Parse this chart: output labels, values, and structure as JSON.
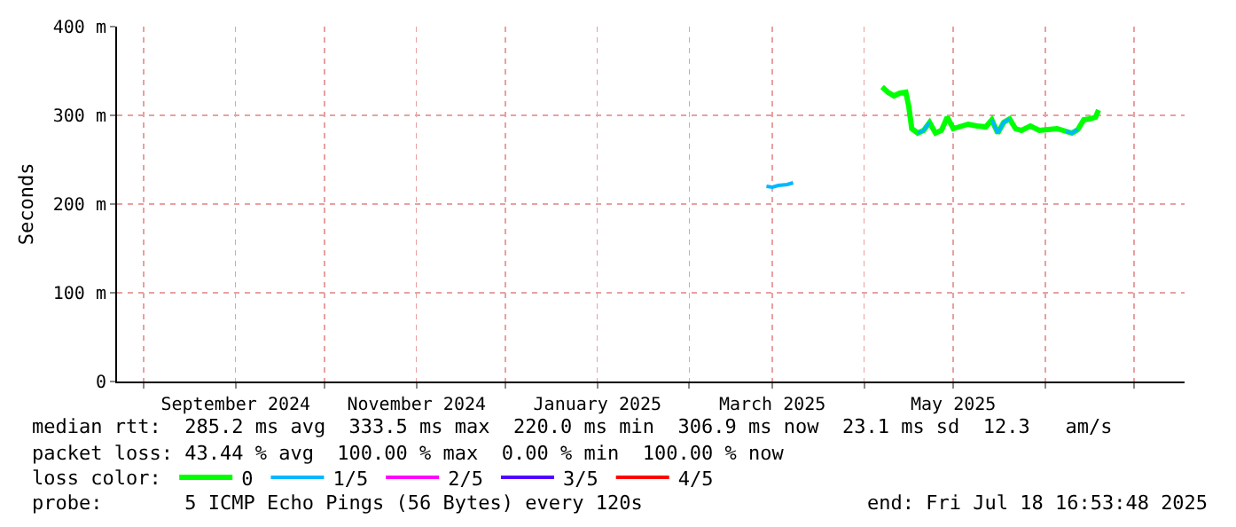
{
  "chart_data": {
    "type": "line",
    "ylabel": "Seconds",
    "legend_title": "loss color:",
    "x": [
      "2025-02-27",
      "2025-03-01",
      "2025-03-03",
      "2025-03-06",
      "2025-03-08",
      "2025-03-20",
      "2025-04-07",
      "2025-04-09",
      "2025-04-11",
      "2025-04-13",
      "2025-04-15",
      "2025-04-16",
      "2025-04-17",
      "2025-04-19",
      "2025-04-21",
      "2025-04-23",
      "2025-04-25",
      "2025-04-27",
      "2025-04-29",
      "2025-05-01",
      "2025-05-03",
      "2025-05-06",
      "2025-05-09",
      "2025-05-12",
      "2025-05-14",
      "2025-05-16",
      "2025-05-18",
      "2025-05-20",
      "2025-05-22",
      "2025-05-24",
      "2025-05-27",
      "2025-05-30",
      "2025-06-02",
      "2025-06-05",
      "2025-06-08",
      "2025-06-10",
      "2025-06-12",
      "2025-06-14",
      "2025-06-16",
      "2025-06-18",
      "2025-06-19"
    ],
    "series": [
      {
        "name": "0",
        "color": "#00ff00",
        "values": [
          null,
          null,
          null,
          null,
          null,
          null,
          332,
          326,
          322,
          325,
          326,
          310,
          285,
          280,
          283,
          292,
          280,
          283,
          298,
          285,
          287,
          290,
          288,
          287,
          295,
          280,
          292,
          296,
          285,
          283,
          288,
          283,
          284,
          285,
          282,
          280,
          284,
          295,
          296,
          298,
          306
        ]
      },
      {
        "name": "1/5",
        "color": "#00b8ff",
        "values": [
          220,
          219,
          221,
          222,
          224,
          null,
          null,
          null,
          null,
          null,
          null,
          null,
          null,
          280,
          283,
          292,
          null,
          null,
          null,
          null,
          null,
          null,
          null,
          null,
          295,
          280,
          292,
          296,
          null,
          null,
          null,
          null,
          null,
          null,
          282,
          280,
          284,
          null,
          null,
          null,
          null
        ]
      },
      {
        "name": "2/5",
        "color": "#ff00ff",
        "values": [
          null,
          null,
          null,
          null,
          null,
          null,
          null,
          null,
          null,
          null,
          null,
          null,
          null,
          null,
          null,
          null,
          null,
          null,
          null,
          null,
          null,
          null,
          null,
          null,
          null,
          null,
          null,
          null,
          null,
          null,
          null,
          null,
          null,
          null,
          null,
          null,
          null,
          null,
          null,
          null,
          null
        ]
      },
      {
        "name": "3/5",
        "color": "#5500ff",
        "values": [
          null,
          null,
          null,
          null,
          null,
          null,
          null,
          null,
          null,
          null,
          null,
          null,
          null,
          null,
          null,
          null,
          null,
          null,
          null,
          null,
          null,
          null,
          null,
          null,
          null,
          null,
          null,
          null,
          null,
          null,
          null,
          null,
          null,
          null,
          null,
          null,
          null,
          null,
          null,
          null,
          null
        ]
      },
      {
        "name": "4/5",
        "color": "#ff0000",
        "values": [
          null,
          null,
          null,
          null,
          null,
          null,
          null,
          null,
          null,
          null,
          null,
          null,
          null,
          null,
          null,
          null,
          null,
          null,
          null,
          null,
          null,
          null,
          null,
          null,
          null,
          null,
          null,
          null,
          null,
          null,
          null,
          null,
          null,
          null,
          null,
          null,
          null,
          null,
          null,
          null,
          null
        ]
      }
    ],
    "xlim": [
      "2024-07-23",
      "2025-07-18"
    ],
    "xticks": [
      {
        "value": "2024-08-01",
        "label": null
      },
      {
        "value": "2024-09-01",
        "label": "September 2024"
      },
      {
        "value": "2024-10-01",
        "label": null
      },
      {
        "value": "2024-11-01",
        "label": "November 2024"
      },
      {
        "value": "2024-12-01",
        "label": null
      },
      {
        "value": "2025-01-01",
        "label": "January 2025"
      },
      {
        "value": "2025-02-01",
        "label": null
      },
      {
        "value": "2025-03-01",
        "label": "March 2025"
      },
      {
        "value": "2025-04-01",
        "label": null
      },
      {
        "value": "2025-05-01",
        "label": "May 2025"
      },
      {
        "value": "2025-06-01",
        "label": null
      },
      {
        "value": "2025-07-01",
        "label": null
      }
    ],
    "ylim": [
      0,
      400
    ],
    "yticks": [
      0,
      {
        "value": 100,
        "label": "100 m"
      },
      {
        "value": 200,
        "label": "200 m"
      },
      {
        "value": 300,
        "label": "300 m"
      },
      {
        "value": 400,
        "label": "400 m"
      }
    ],
    "grid": true,
    "legend": "bottom left",
    "marker": "none",
    "line_style": "solid",
    "annotations": [
      "median rtt:  285.2 ms avg  333.5 ms max  220.0 ms min  306.9 ms now  23.1 ms sd  12.3   am/s",
      "packet loss: 43.44 % avg  100.00 % max  0.00 % min  100.00 % now",
      "probe:       5 ICMP Echo Pings (56 Bytes) every 120s",
      "end: Fri Jul 18 16:53:48 2025"
    ]
  }
}
